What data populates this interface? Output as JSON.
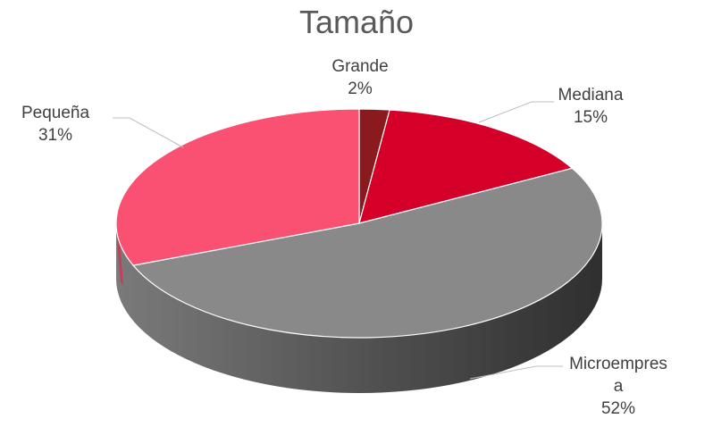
{
  "chart_data": {
    "type": "pie",
    "title": "Tamaño",
    "legend": "none",
    "slices": [
      {
        "name": "Grande",
        "value": 2,
        "label_lines": [
          "Grande",
          "2%"
        ],
        "color": "#8b1a1f"
      },
      {
        "name": "Mediana",
        "value": 15,
        "label_lines": [
          "Mediana",
          "15%"
        ],
        "color": "#d4002a"
      },
      {
        "name": "Microempresa",
        "value": 52,
        "label_lines": [
          "Microempres",
          "a",
          "52%"
        ],
        "color": "#898989"
      },
      {
        "name": "Pequeña",
        "value": 31,
        "label_lines": [
          "Pequeña",
          "31%"
        ],
        "color": "#fa5173"
      }
    ]
  }
}
